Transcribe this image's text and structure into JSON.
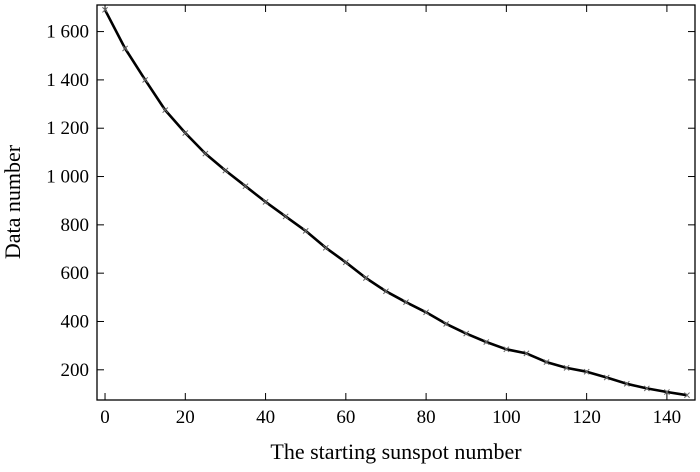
{
  "chart_data": {
    "type": "line",
    "title": "",
    "xlabel": "The starting sunspot number",
    "ylabel": "Data number",
    "xlim": [
      -2,
      147
    ],
    "ylim": [
      75,
      1710
    ],
    "grid": false,
    "legend": "none",
    "x_ticks": [
      0,
      20,
      40,
      60,
      80,
      100,
      120,
      140
    ],
    "x_tick_labels": [
      "0",
      "20",
      "40",
      "60",
      "80",
      "100",
      "120",
      "140"
    ],
    "y_ticks": [
      200,
      400,
      600,
      800,
      1000,
      1200,
      1400,
      1600
    ],
    "y_tick_labels": [
      "200",
      "400",
      "600",
      "800",
      "1 000",
      "1 200",
      "1 400",
      "1 600"
    ],
    "line_color": "#000000",
    "marker": "x",
    "series": [
      {
        "x": [
          0,
          5,
          10,
          15,
          20,
          25,
          30,
          35,
          40,
          45,
          50,
          55,
          60,
          65,
          70,
          75,
          80,
          85,
          90,
          95,
          100,
          105,
          110,
          115,
          120,
          125,
          130,
          135,
          140,
          145
        ],
        "values": [
          1690,
          1530,
          1400,
          1275,
          1180,
          1095,
          1025,
          960,
          895,
          835,
          775,
          705,
          645,
          580,
          525,
          480,
          438,
          390,
          350,
          315,
          285,
          268,
          232,
          208,
          192,
          168,
          142,
          123,
          108,
          95
        ]
      }
    ]
  }
}
